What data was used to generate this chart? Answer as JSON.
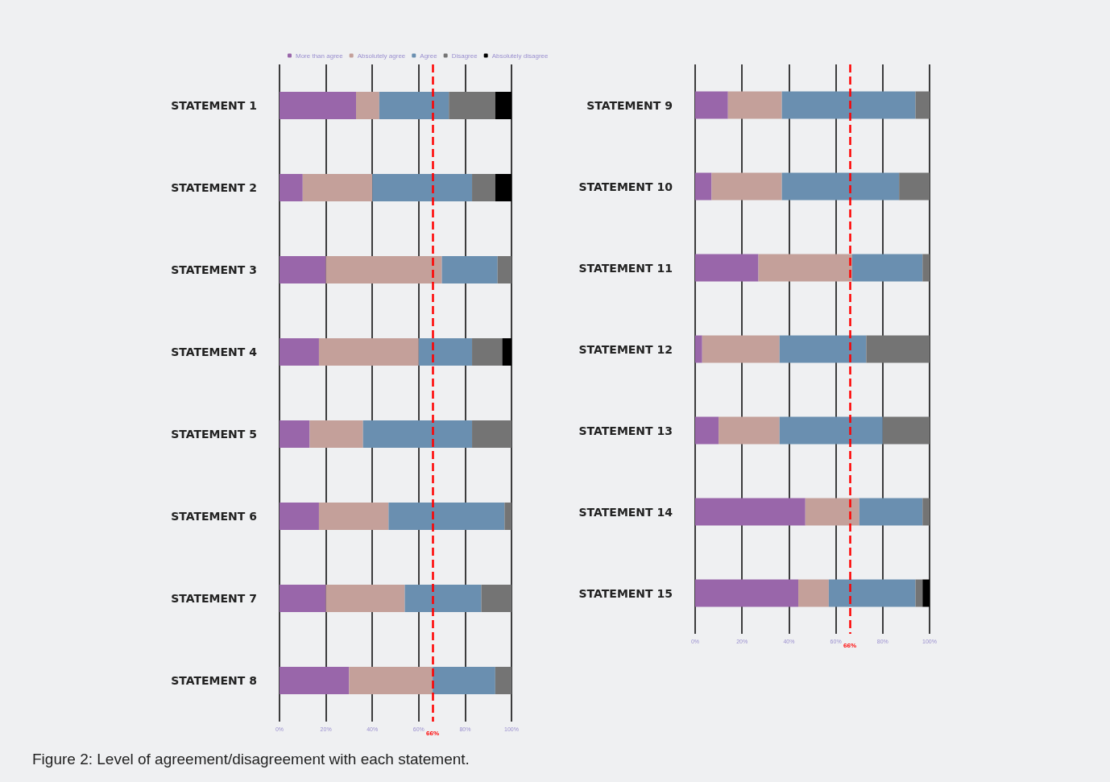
{
  "chart_data": [
    {
      "type": "bar",
      "orientation": "horizontal",
      "stacked": true,
      "categories": [
        "STATEMENT 1",
        "STATEMENT 2",
        "STATEMENT 3",
        "STATEMENT 4",
        "STATEMENT 5",
        "STATEMENT 6",
        "STATEMENT 7",
        "STATEMENT 8"
      ],
      "series": [
        {
          "name": "More than agree",
          "color": "#9966aa",
          "values": [
            33,
            10,
            20,
            17,
            13,
            17,
            20,
            30
          ]
        },
        {
          "name": "Absolutely agree",
          "color": "#c4a09a",
          "values": [
            10,
            30,
            50,
            43,
            23,
            30,
            34,
            36
          ]
        },
        {
          "name": "Agree",
          "color": "#6a8fb0",
          "values": [
            30,
            43,
            24,
            23,
            47,
            50,
            33,
            27
          ]
        },
        {
          "name": "Disagree",
          "color": "#747474",
          "values": [
            20,
            10,
            6,
            13,
            17,
            3,
            13,
            7
          ]
        },
        {
          "name": "Absolutely disagree",
          "color": "#000000",
          "values": [
            7,
            7,
            0,
            4,
            0,
            0,
            0,
            0
          ]
        }
      ],
      "xlim": [
        0,
        100
      ],
      "xticks": [
        {
          "value": 0,
          "label": "0%"
        },
        {
          "value": 20,
          "label": "20%"
        },
        {
          "value": 40,
          "label": "40%"
        },
        {
          "value": 60,
          "label": "60%"
        },
        {
          "value": 80,
          "label": "80%"
        },
        {
          "value": 100,
          "label": "100%"
        }
      ],
      "grid": "x",
      "legend": "top",
      "ref_lines": [
        {
          "axis": "x",
          "value": 66,
          "label": "66%",
          "color": "#ff0000",
          "line_style": "dashed"
        }
      ],
      "annotations": [
        "Figure 2: Level of agreement/disagreement with each statement."
      ]
    },
    {
      "type": "bar",
      "orientation": "horizontal",
      "stacked": true,
      "categories": [
        "STATEMENT 9",
        "STATEMENT 10",
        "STATEMENT 11",
        "STATEMENT 12",
        "STATEMENT 13",
        "STATEMENT 14",
        "STATEMENT 15"
      ],
      "series": [
        {
          "color": "#9966aa",
          "values": [
            14,
            7,
            27,
            3,
            10,
            47,
            44
          ]
        },
        {
          "color": "#c4a09a",
          "values": [
            23,
            30,
            40,
            33,
            26,
            23,
            13
          ]
        },
        {
          "color": "#6a8fb0",
          "values": [
            57,
            50,
            30,
            37,
            44,
            27,
            37
          ]
        },
        {
          "color": "#747474",
          "values": [
            6,
            13,
            3,
            27,
            20,
            3,
            3
          ]
        },
        {
          "color": "#000000",
          "values": [
            0,
            0,
            0,
            0,
            0,
            0,
            3
          ]
        }
      ],
      "xlim": [
        0,
        100
      ],
      "xticks": [
        {
          "value": 0,
          "label": "0%"
        },
        {
          "value": 20,
          "label": "20%"
        },
        {
          "value": 40,
          "label": "40%"
        },
        {
          "value": 60,
          "label": "60%"
        },
        {
          "value": 80,
          "label": "80%"
        },
        {
          "value": 100,
          "label": "100%"
        }
      ],
      "grid": "x",
      "ref_lines": [
        {
          "axis": "x",
          "value": 66,
          "label": "66%",
          "color": "#ff0000",
          "line_style": "dashed"
        }
      ]
    }
  ]
}
